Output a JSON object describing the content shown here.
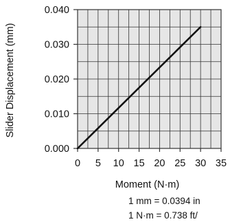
{
  "chart_data": {
    "type": "line",
    "xlabel": "Moment (N·m)",
    "ylabel": "Slider Displacement (mm)",
    "xlim": [
      0,
      35
    ],
    "ylim": [
      0,
      0.04
    ],
    "x_ticks": [
      "0",
      "5",
      "10",
      "15",
      "20",
      "25",
      "30",
      "35"
    ],
    "y_ticks": [
      "0.000",
      "0.010",
      "0.020",
      "0.030",
      "0.040"
    ],
    "grid": true,
    "series": [
      {
        "x": [
          0,
          30
        ],
        "y": [
          0,
          0.035
        ]
      }
    ],
    "notes": [
      "1 mm = 0.0394 in",
      "1 N·m = 0.738 ft/"
    ]
  },
  "style": {
    "plot_bg": "#e6e6e6",
    "grid_color": "#333333",
    "line_color": "#111111",
    "text_color": "#111111"
  }
}
